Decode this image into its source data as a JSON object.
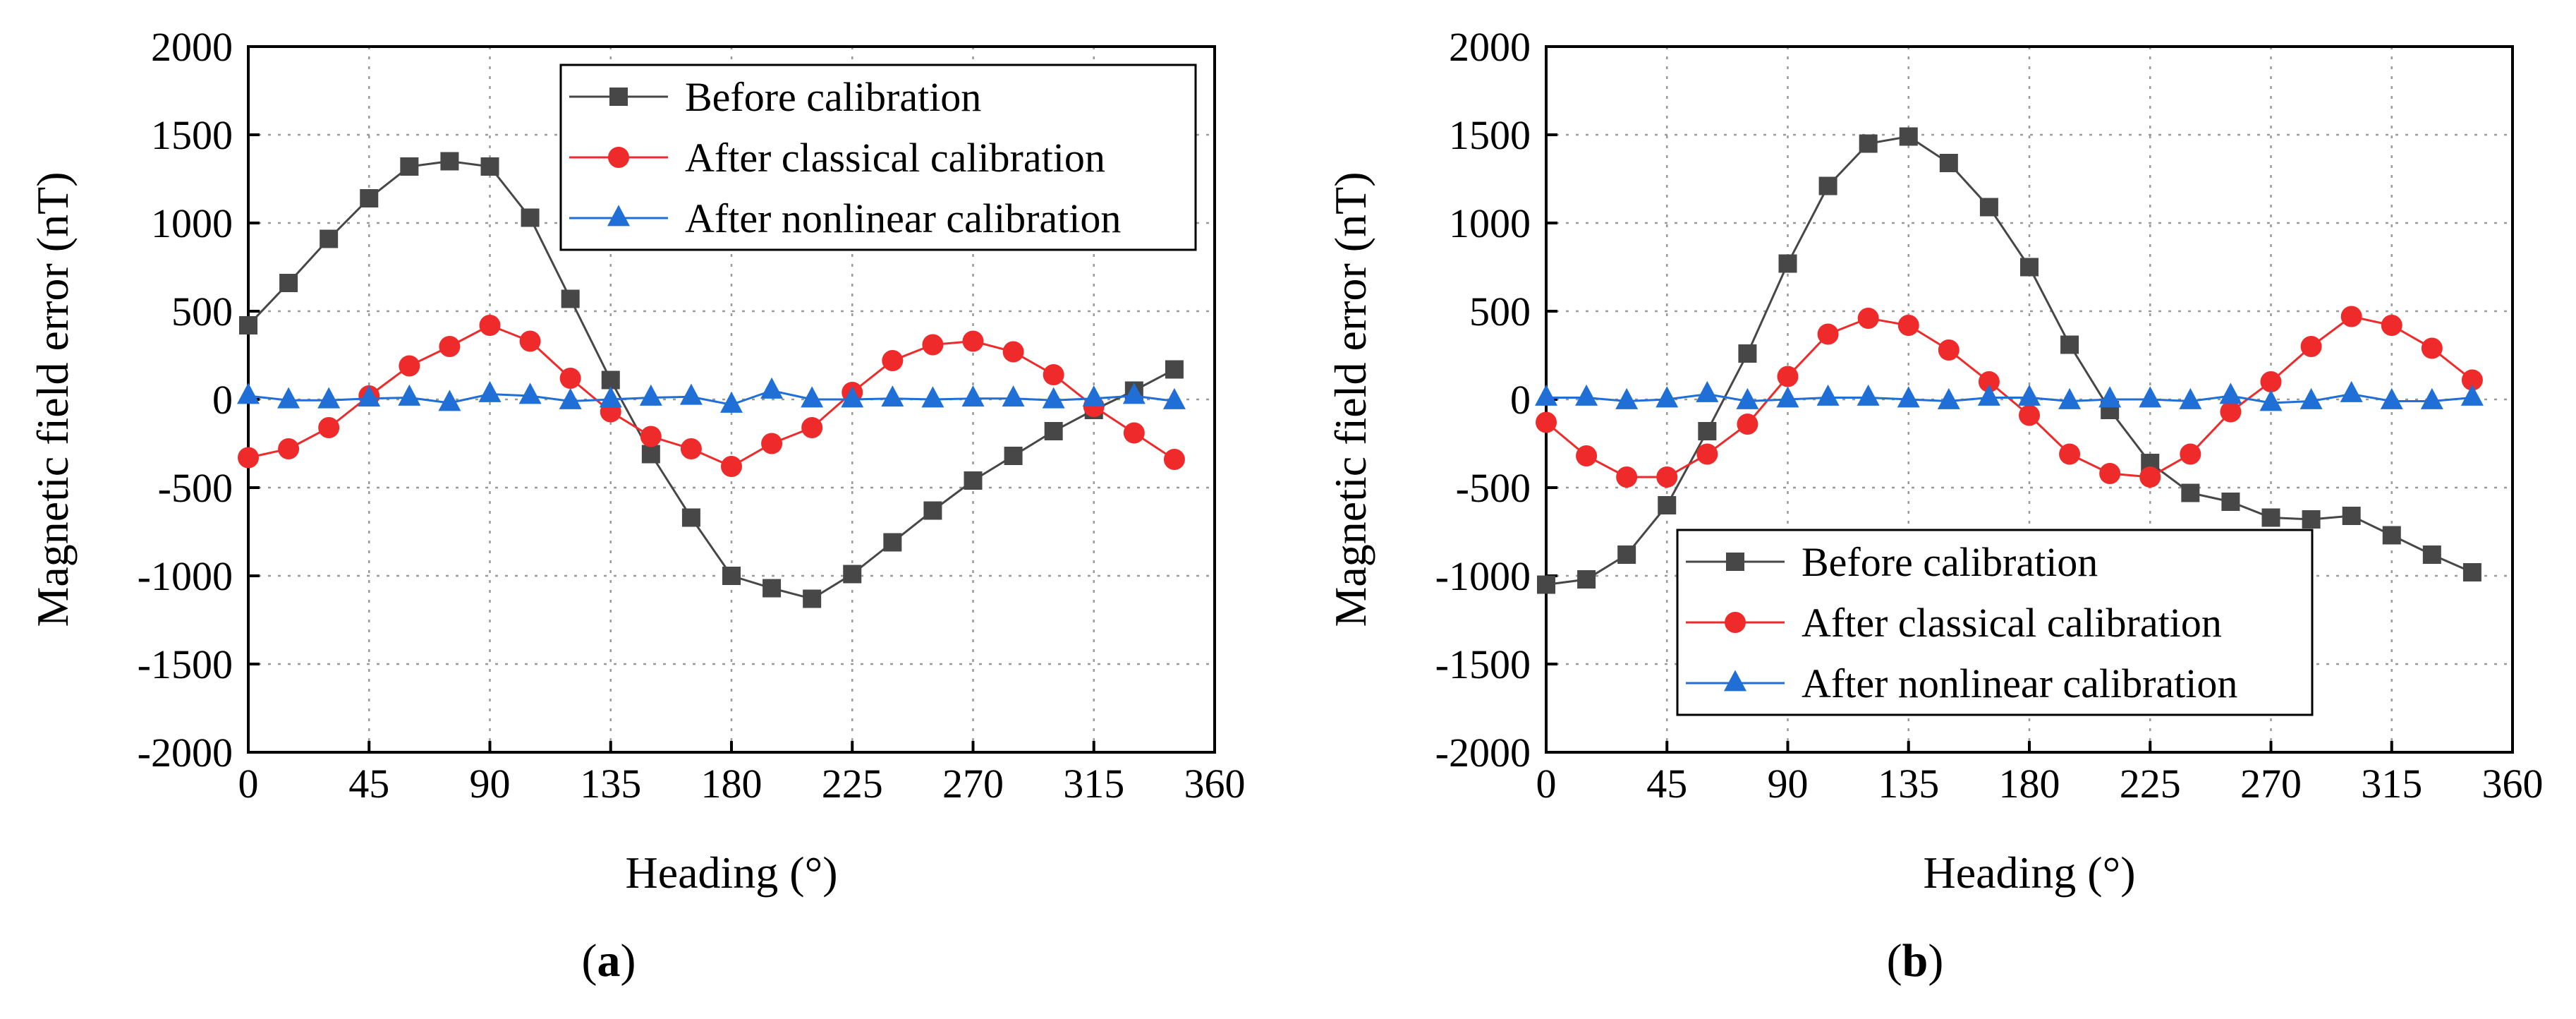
{
  "colors": {
    "before": "#474747",
    "classical": "#ee2a2a",
    "nonlinear": "#1f6fd6",
    "grid": "#9a9a9a",
    "axis": "#000000"
  },
  "chart_data": [
    {
      "type": "line",
      "panel": "(a)",
      "panel_letter": "a",
      "xlabel": "Heading (°)",
      "ylabel": "Magnetic field error (nT)",
      "xlim": [
        0,
        360
      ],
      "ylim": [
        -2000,
        2000
      ],
      "xticks": [
        0,
        45,
        90,
        135,
        180,
        225,
        270,
        315,
        360
      ],
      "yticks": [
        2000,
        1500,
        1000,
        500,
        0,
        -500,
        -1000,
        -1500,
        -2000
      ],
      "grid": true,
      "legend_position": "top-right",
      "x": [
        0,
        15,
        30,
        45,
        60,
        75,
        90,
        105,
        120,
        135,
        150,
        165,
        180,
        195,
        210,
        225,
        240,
        255,
        270,
        285,
        300,
        315,
        330,
        345
      ],
      "series": [
        {
          "name": "Before calibration",
          "marker": "square",
          "color_key": "before",
          "values": [
            420,
            660,
            910,
            1140,
            1320,
            1350,
            1320,
            1030,
            570,
            110,
            -310,
            -670,
            -1000,
            -1070,
            -1130,
            -990,
            -810,
            -630,
            -460,
            -320,
            -180,
            -60,
            50,
            170
          ]
        },
        {
          "name": "After classical calibration",
          "marker": "circle",
          "color_key": "classical",
          "values": [
            -330,
            -280,
            -160,
            20,
            190,
            300,
            420,
            330,
            120,
            -70,
            -210,
            -280,
            -380,
            -250,
            -160,
            40,
            220,
            310,
            330,
            270,
            140,
            -40,
            -190,
            -340
          ]
        },
        {
          "name": "After nonlinear calibration",
          "marker": "triangle",
          "color_key": "nonlinear",
          "values": [
            20,
            -5,
            -5,
            5,
            10,
            -20,
            30,
            20,
            -10,
            0,
            10,
            15,
            -30,
            50,
            0,
            0,
            5,
            0,
            5,
            5,
            -5,
            5,
            20,
            -10
          ]
        }
      ]
    },
    {
      "type": "line",
      "panel": "(b)",
      "panel_letter": "b",
      "xlabel": "Heading (°)",
      "ylabel": "Magnetic field error (nT)",
      "xlim": [
        0,
        360
      ],
      "ylim": [
        -2000,
        2000
      ],
      "xticks": [
        0,
        45,
        90,
        135,
        180,
        225,
        270,
        315,
        360
      ],
      "yticks": [
        2000,
        1500,
        1000,
        500,
        0,
        -500,
        -1000,
        -1500,
        -2000
      ],
      "grid": true,
      "legend_position": "bottom-right",
      "x": [
        0,
        15,
        30,
        45,
        60,
        75,
        90,
        105,
        120,
        135,
        150,
        165,
        180,
        195,
        210,
        225,
        240,
        255,
        270,
        285,
        300,
        315,
        330,
        345
      ],
      "series": [
        {
          "name": "Before calibration",
          "marker": "square",
          "color_key": "before",
          "values": [
            -1050,
            -1020,
            -880,
            -600,
            -180,
            260,
            770,
            1210,
            1450,
            1490,
            1340,
            1090,
            750,
            310,
            -60,
            -360,
            -530,
            -580,
            -670,
            -680,
            -660,
            -770,
            -880,
            -980
          ]
        },
        {
          "name": "After classical calibration",
          "marker": "circle",
          "color_key": "classical",
          "values": [
            -130,
            -320,
            -440,
            -440,
            -310,
            -140,
            130,
            370,
            460,
            420,
            280,
            100,
            -90,
            -310,
            -420,
            -440,
            -310,
            -70,
            100,
            300,
            470,
            420,
            290,
            110
          ]
        },
        {
          "name": "After nonlinear calibration",
          "marker": "triangle",
          "color_key": "nonlinear",
          "values": [
            10,
            10,
            -10,
            0,
            30,
            -10,
            0,
            10,
            10,
            0,
            -10,
            10,
            10,
            -10,
            0,
            0,
            -10,
            20,
            -20,
            -10,
            30,
            -10,
            -10,
            10
          ]
        }
      ]
    }
  ]
}
